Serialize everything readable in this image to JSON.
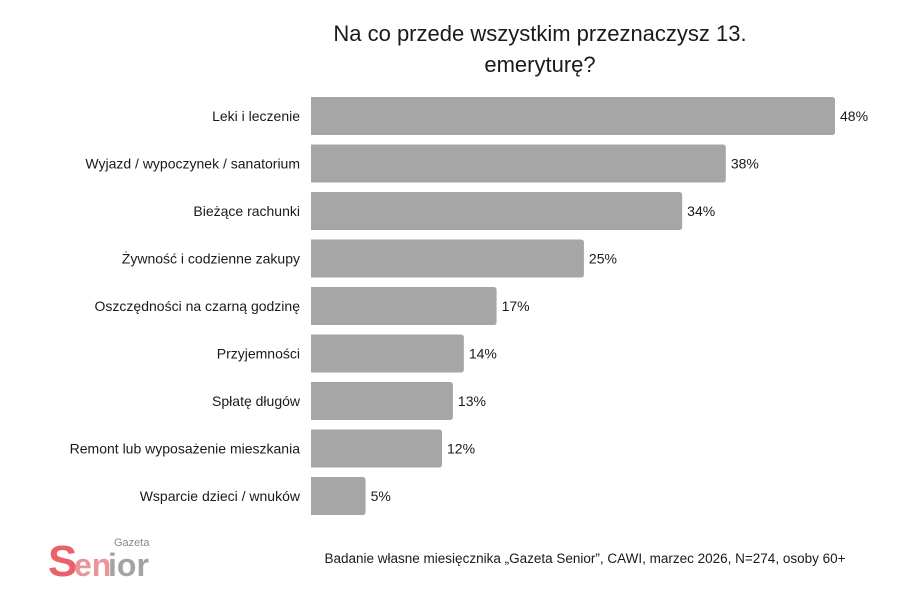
{
  "chart_data": {
    "type": "bar",
    "orientation": "horizontal",
    "title": "Na co przede wszystkim przeznaczysz 13. emeryturę?",
    "categories": [
      "Leki i leczenie",
      "Wyjazd / wypoczynek / sanatorium",
      "Bieżące rachunki",
      "Żywność i codzienne zakupy",
      "Oszczędności na czarną godzinę",
      "Przyjemności",
      "Spłatę długów",
      "Remont lub wyposażenie mieszkania",
      "Wsparcie dzieci / wnuków"
    ],
    "values": [
      48,
      38,
      34,
      25,
      17,
      14,
      13,
      12,
      5
    ],
    "value_suffix": "%",
    "xlim": [
      0,
      48
    ],
    "grid": false,
    "bar_color": "#a6a6a6"
  },
  "footer": "Badanie własne miesięcznika „Gazeta Senior”, CAWI, marzec 2026, N=274, osoby 60+",
  "logo": {
    "text": "Gazeta Senior",
    "accent": "#e8505b"
  }
}
